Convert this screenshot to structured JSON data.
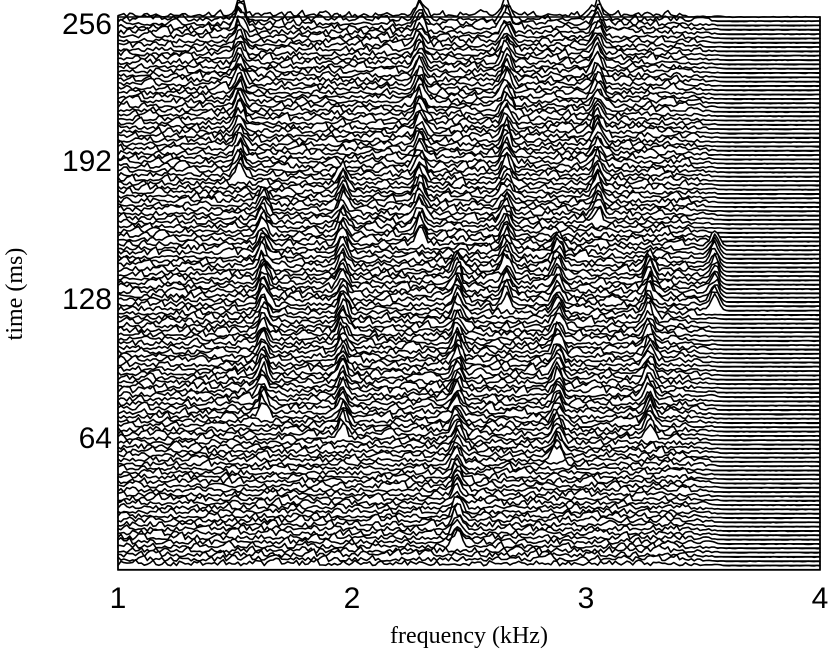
{
  "chart_data": {
    "type": "line",
    "subtype": "waterfall",
    "title": "",
    "xlabel": "frequency (kHz)",
    "ylabel": "time (ms)",
    "xlim": [
      1,
      4
    ],
    "ylim": [
      0,
      256
    ],
    "x_ticks": [
      "1",
      "2",
      "3",
      "4"
    ],
    "y_ticks": [
      "64",
      "128",
      "192",
      "256"
    ],
    "grid": false,
    "legend": "none",
    "n_traces": 128,
    "trace_spacing_ms": 2,
    "features": [
      {
        "freq_khz": 1.52,
        "t_start_ms": 180,
        "t_end_ms": 256
      },
      {
        "freq_khz": 2.29,
        "t_start_ms": 150,
        "t_end_ms": 256
      },
      {
        "freq_khz": 2.66,
        "t_start_ms": 120,
        "t_end_ms": 256
      },
      {
        "freq_khz": 3.05,
        "t_start_ms": 160,
        "t_end_ms": 256
      },
      {
        "freq_khz": 1.96,
        "t_start_ms": 60,
        "t_end_ms": 180
      },
      {
        "freq_khz": 1.62,
        "t_start_ms": 70,
        "t_end_ms": 170
      },
      {
        "freq_khz": 2.45,
        "t_start_ms": 10,
        "t_end_ms": 140
      },
      {
        "freq_khz": 2.88,
        "t_start_ms": 50,
        "t_end_ms": 150
      },
      {
        "freq_khz": 3.27,
        "t_start_ms": 60,
        "t_end_ms": 140
      },
      {
        "freq_khz": 3.55,
        "t_start_ms": 120,
        "t_end_ms": 150
      }
    ],
    "noise_band_khz": [
      1,
      3.6
    ]
  },
  "colors": {
    "trace": "#000000",
    "background": "#ffffff"
  }
}
